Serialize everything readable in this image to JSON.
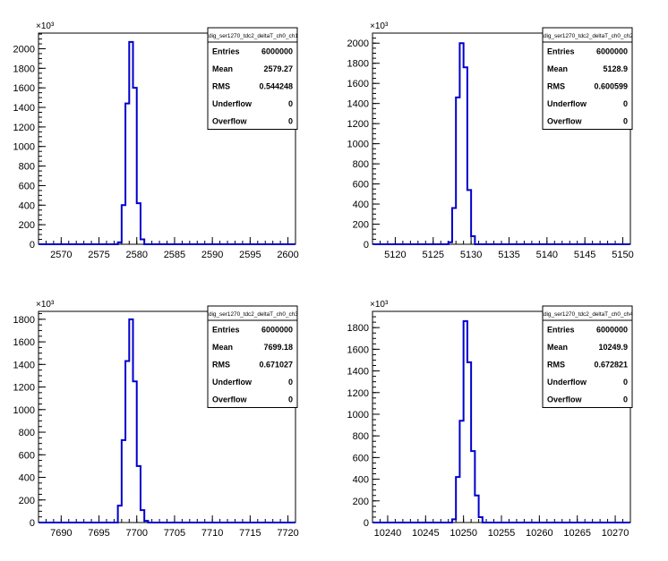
{
  "chart_data": [
    {
      "type": "histogram",
      "title": "",
      "xlabel": "",
      "ylabel": "",
      "y_exponent_label": "×10³",
      "xlim": [
        2567,
        2601
      ],
      "ylim": [
        0,
        2160
      ],
      "x_ticks": [
        2570,
        2575,
        2580,
        2585,
        2590,
        2595,
        2600
      ],
      "y_ticks": [
        0,
        200,
        400,
        600,
        800,
        1000,
        1200,
        1400,
        1600,
        1800,
        2000
      ],
      "x_minor_step": 1,
      "bin_width": 0.5,
      "bins": [
        {
          "x": 2577.5,
          "value": 20
        },
        {
          "x": 2578.0,
          "value": 400
        },
        {
          "x": 2578.5,
          "value": 1440
        },
        {
          "x": 2579.0,
          "value": 2070
        },
        {
          "x": 2579.5,
          "value": 1600
        },
        {
          "x": 2580.0,
          "value": 420
        },
        {
          "x": 2580.5,
          "value": 50
        }
      ],
      "stats": {
        "name": "tdig_ser1270_tdc2_deltaT_ch0_ch1",
        "rows": [
          {
            "label": "Entries",
            "value": "6000000"
          },
          {
            "label": "Mean",
            "value": "2579.27"
          },
          {
            "label": "RMS",
            "value": "0.544248"
          },
          {
            "label": "Underflow",
            "value": "0"
          },
          {
            "label": "Overflow",
            "value": "0"
          }
        ]
      }
    },
    {
      "type": "histogram",
      "title": "",
      "xlabel": "",
      "ylabel": "",
      "y_exponent_label": "×10³",
      "xlim": [
        5117,
        5151
      ],
      "ylim": [
        0,
        2100
      ],
      "x_ticks": [
        5120,
        5125,
        5130,
        5135,
        5140,
        5145,
        5150
      ],
      "y_ticks": [
        0,
        200,
        400,
        600,
        800,
        1000,
        1200,
        1400,
        1600,
        1800,
        2000
      ],
      "x_minor_step": 1,
      "bin_width": 0.5,
      "bins": [
        {
          "x": 5127.0,
          "value": 20
        },
        {
          "x": 5127.5,
          "value": 360
        },
        {
          "x": 5128.0,
          "value": 1460
        },
        {
          "x": 5128.5,
          "value": 2000
        },
        {
          "x": 5129.0,
          "value": 1760
        },
        {
          "x": 5129.5,
          "value": 540
        },
        {
          "x": 5130.0,
          "value": 80
        }
      ],
      "stats": {
        "name": "tdig_ser1270_tdc2_deltaT_ch0_ch2",
        "rows": [
          {
            "label": "Entries",
            "value": "6000000"
          },
          {
            "label": "Mean",
            "value": "5128.9"
          },
          {
            "label": "RMS",
            "value": "0.600599"
          },
          {
            "label": "Underflow",
            "value": "0"
          },
          {
            "label": "Overflow",
            "value": "0"
          }
        ]
      }
    },
    {
      "type": "histogram",
      "title": "",
      "xlabel": "",
      "ylabel": "",
      "y_exponent_label": "×10³",
      "xlim": [
        7687,
        7721
      ],
      "ylim": [
        0,
        1870
      ],
      "x_ticks": [
        7690,
        7695,
        7700,
        7705,
        7710,
        7715,
        7720
      ],
      "y_ticks": [
        0,
        200,
        400,
        600,
        800,
        1000,
        1200,
        1400,
        1600,
        1800
      ],
      "x_minor_step": 1,
      "bin_width": 0.5,
      "bins": [
        {
          "x": 7697.5,
          "value": 150
        },
        {
          "x": 7698.0,
          "value": 730
        },
        {
          "x": 7698.5,
          "value": 1430
        },
        {
          "x": 7699.0,
          "value": 1800
        },
        {
          "x": 7699.5,
          "value": 1250
        },
        {
          "x": 7700.0,
          "value": 500
        },
        {
          "x": 7700.5,
          "value": 110
        },
        {
          "x": 7701.0,
          "value": 15
        }
      ],
      "stats": {
        "name": "tdig_ser1270_tdc2_deltaT_ch0_ch3",
        "rows": [
          {
            "label": "Entries",
            "value": "6000000"
          },
          {
            "label": "Mean",
            "value": "7699.18"
          },
          {
            "label": "RMS",
            "value": "0.671027"
          },
          {
            "label": "Underflow",
            "value": "0"
          },
          {
            "label": "Overflow",
            "value": "0"
          }
        ]
      }
    },
    {
      "type": "histogram",
      "title": "",
      "xlabel": "",
      "ylabel": "",
      "y_exponent_label": "×10³",
      "xlim": [
        10238,
        10272
      ],
      "ylim": [
        0,
        1950
      ],
      "x_ticks": [
        10240,
        10245,
        10250,
        10255,
        10260,
        10265,
        10270
      ],
      "y_ticks": [
        0,
        200,
        400,
        600,
        800,
        1000,
        1200,
        1400,
        1600,
        1800
      ],
      "x_minor_step": 1,
      "bin_width": 0.5,
      "bins": [
        {
          "x": 10248.5,
          "value": 30
        },
        {
          "x": 10249.0,
          "value": 420
        },
        {
          "x": 10249.5,
          "value": 940
        },
        {
          "x": 10250.0,
          "value": 1860
        },
        {
          "x": 10250.5,
          "value": 1480
        },
        {
          "x": 10251.0,
          "value": 660
        },
        {
          "x": 10251.5,
          "value": 250
        },
        {
          "x": 10252.0,
          "value": 50
        }
      ],
      "stats": {
        "name": "tdig_ser1270_tdc2_deltaT_ch0_ch4",
        "rows": [
          {
            "label": "Entries",
            "value": "6000000"
          },
          {
            "label": "Mean",
            "value": "10249.9"
          },
          {
            "label": "RMS",
            "value": "0.672821"
          },
          {
            "label": "Underflow",
            "value": "0"
          },
          {
            "label": "Overflow",
            "value": "0"
          }
        ]
      }
    }
  ],
  "style": {
    "histogram_color": "#0000cc",
    "axis_color": "#000000",
    "background": "#ffffff"
  }
}
